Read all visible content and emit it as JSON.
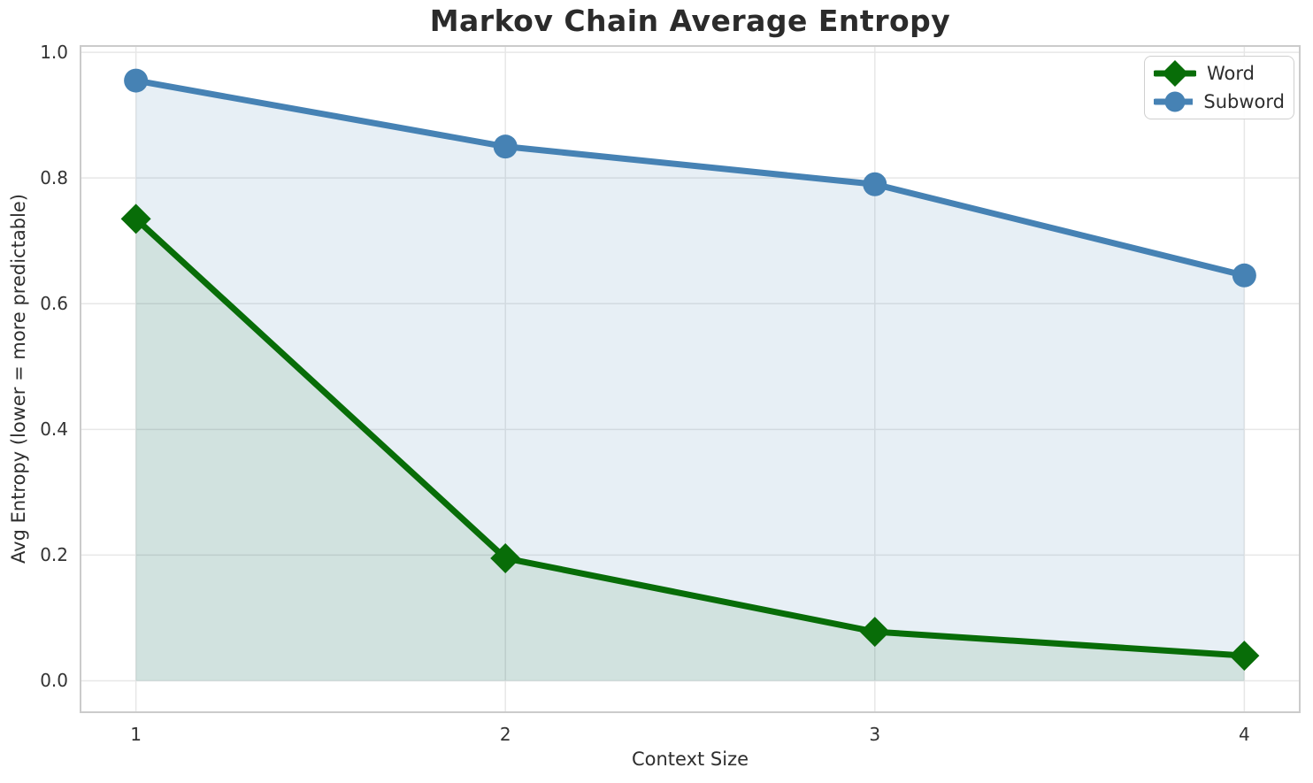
{
  "chart_data": {
    "type": "line",
    "title": "Markov Chain Average Entropy",
    "xlabel": "Context Size",
    "ylabel": "Avg Entropy (lower = more predictable)",
    "x": [
      1,
      2,
      3,
      4
    ],
    "xlim": [
      0.85,
      4.15
    ],
    "ylim": [
      -0.05,
      1.01
    ],
    "xticks": [
      "1",
      "2",
      "3",
      "4"
    ],
    "yticks": [
      "0.0",
      "0.2",
      "0.4",
      "0.6",
      "0.8",
      "1.0"
    ],
    "grid": true,
    "legend_position": "upper right",
    "fill_to_y": 0,
    "series": [
      {
        "name": "Word",
        "marker": "diamond",
        "color": "#086d08",
        "fill_alpha": 0.1,
        "values": [
          0.735,
          0.195,
          0.078,
          0.04
        ]
      },
      {
        "name": "Subword",
        "marker": "circle",
        "color": "#4682b4",
        "fill_alpha": 0.13,
        "values": [
          0.955,
          0.85,
          0.79,
          0.645
        ]
      }
    ]
  },
  "colors": {
    "grid": "#e7e7e7",
    "spine": "#cbcbcb",
    "title_text": "#2b2b2b",
    "tick_text": "#333333",
    "label_text": "#2e2e2e",
    "legend_border": "#cfcfcf"
  }
}
